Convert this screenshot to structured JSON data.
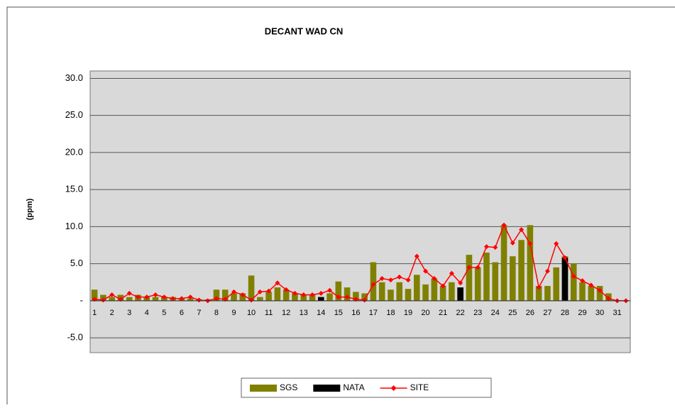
{
  "chart_data": {
    "type": "bar",
    "title": "DECANT WAD CN",
    "ylabel": "(ppm)",
    "categories": [
      "1",
      null,
      "2",
      null,
      "3",
      null,
      "4",
      null,
      "5",
      null,
      "6",
      null,
      "7",
      null,
      "8",
      null,
      "9",
      null,
      "10",
      null,
      "11",
      null,
      "12",
      null,
      "13",
      null,
      "14",
      null,
      "15",
      null,
      "16",
      null,
      "17",
      null,
      "18",
      null,
      "19",
      null,
      "20",
      null,
      "21",
      null,
      "22",
      null,
      "23",
      null,
      "24",
      null,
      "25",
      null,
      "26",
      null,
      "27",
      null,
      "28",
      null,
      "29",
      null,
      "30",
      null,
      "31",
      null
    ],
    "series": [
      {
        "name": "SGS",
        "type": "bar",
        "color": "#808000",
        "values": [
          1.5,
          0.8,
          0.5,
          0.8,
          0.5,
          0.8,
          0.5,
          0.5,
          0.5,
          0.5,
          0.3,
          0.3,
          0.2,
          0.2,
          1.5,
          1.5,
          1.0,
          1.0,
          3.4,
          0.5,
          1.2,
          1.8,
          1.5,
          1.0,
          0.8,
          0.8,
          0.5,
          1.0,
          2.6,
          1.8,
          1.2,
          1.0,
          5.2,
          2.5,
          1.5,
          2.5,
          1.6,
          3.5,
          2.2,
          3.0,
          2.0,
          2.5,
          1.8,
          6.2,
          4.5,
          6.5,
          5.2,
          10.2,
          6.0,
          8.2,
          10.2,
          2.0,
          2.0,
          4.5,
          6.0,
          5.0,
          2.5,
          2.0,
          2.0,
          1.0,
          0,
          0
        ]
      },
      {
        "name": "NATA",
        "type": "bar",
        "color": "#000000",
        "values": [
          null,
          null,
          null,
          null,
          null,
          null,
          null,
          null,
          null,
          null,
          null,
          null,
          null,
          null,
          null,
          null,
          null,
          null,
          null,
          null,
          null,
          null,
          null,
          null,
          null,
          null,
          0.5,
          null,
          null,
          null,
          null,
          null,
          null,
          null,
          null,
          null,
          null,
          null,
          null,
          null,
          null,
          null,
          1.8,
          null,
          null,
          null,
          null,
          null,
          null,
          null,
          null,
          null,
          null,
          null,
          5.8,
          null,
          null,
          null,
          null,
          null,
          null,
          null
        ]
      },
      {
        "name": "SITE",
        "type": "line",
        "color": "#ff0000",
        "values": [
          0.2,
          0.1,
          0.8,
          0.2,
          1.0,
          0.5,
          0.5,
          0.8,
          0.5,
          0.3,
          0.3,
          0.5,
          0.1,
          0.0,
          0.3,
          0.2,
          1.2,
          0.8,
          0.1,
          1.2,
          1.3,
          2.4,
          1.5,
          1.0,
          0.8,
          0.8,
          1.0,
          1.4,
          0.5,
          0.5,
          0.2,
          0.1,
          2.2,
          3.0,
          2.8,
          3.2,
          2.8,
          6.0,
          4.0,
          3.0,
          2.0,
          3.7,
          2.4,
          4.5,
          4.5,
          7.3,
          7.2,
          10.2,
          7.8,
          9.6,
          7.7,
          1.8,
          4.0,
          7.7,
          5.8,
          3.3,
          2.7,
          2.1,
          1.4,
          0.3,
          0.0,
          0.0
        ]
      }
    ],
    "ylim": [
      -7,
      31
    ],
    "yticks": [
      {
        "value": 30,
        "label": "30.0"
      },
      {
        "value": 25,
        "label": "25.0"
      },
      {
        "value": 20,
        "label": "20.0"
      },
      {
        "value": 15,
        "label": "15.0"
      },
      {
        "value": 10,
        "label": "10.0"
      },
      {
        "value": 5,
        "label": "5.0"
      },
      {
        "value": 0,
        "label": "-"
      },
      {
        "value": -5,
        "label": "-5.0"
      }
    ],
    "grid": true,
    "legend": "bottom"
  }
}
